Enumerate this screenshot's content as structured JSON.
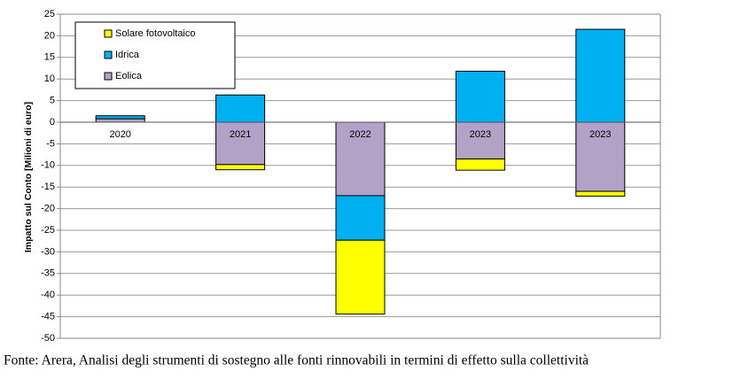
{
  "chart_data": {
    "type": "bar",
    "stacked": true,
    "y_label": "Impatto sul Conto [Milioni di euro]",
    "source": "Fonte: Arera, Analisi degli strumenti di sostegno alle fonti rinnovabili in termini di effetto sulla collettività",
    "categories": [
      "2020",
      "2021",
      "2022",
      "2023",
      "2023"
    ],
    "series": [
      {
        "name": "Solare fotovoltaico",
        "color": "#ffff00",
        "values": [
          0,
          -1.2,
          -17.1,
          -2.6,
          -1.1
        ]
      },
      {
        "name": "Idrica",
        "color": "#00b0f0",
        "values": [
          0.7,
          6.3,
          -10.3,
          11.8,
          21.5
        ]
      },
      {
        "name": "Eolica",
        "color": "#b3a2c7",
        "values": [
          0.8,
          -9.8,
          -17,
          -8.5,
          -16
        ]
      }
    ],
    "ylim": [
      -50,
      25
    ],
    "yticks": [
      -50,
      -45,
      -40,
      -35,
      -30,
      -25,
      -20,
      -15,
      -10,
      -5,
      0,
      5,
      10,
      15,
      20,
      25
    ],
    "grid": true,
    "legend": "top-left"
  }
}
